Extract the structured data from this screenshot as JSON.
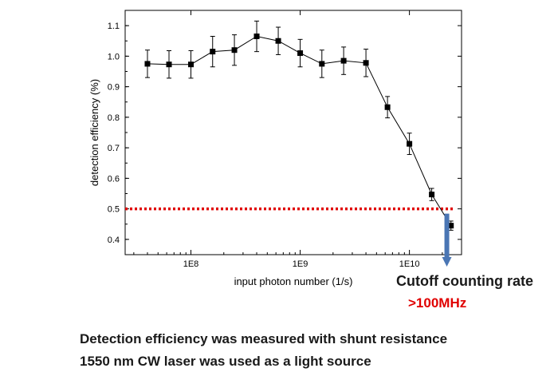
{
  "chart_data": {
    "type": "line",
    "title": "",
    "xlabel": "input photon number (1/s)",
    "ylabel": "detection efficiency (%)",
    "x_scale": "log",
    "xlim": [
      25000000.0,
      30000000000.0
    ],
    "ylim": [
      0.35,
      1.15
    ],
    "x_ticks": [
      {
        "value": 100000000.0,
        "label": "1E8"
      },
      {
        "value": 1000000000.0,
        "label": "1E9"
      },
      {
        "value": 10000000000.0,
        "label": "1E10"
      }
    ],
    "y_ticks": [
      {
        "value": 0.4,
        "label": "0.4"
      },
      {
        "value": 0.5,
        "label": "0.5"
      },
      {
        "value": 0.6,
        "label": "0.6"
      },
      {
        "value": 0.7,
        "label": "0.7"
      },
      {
        "value": 0.8,
        "label": "0.8"
      },
      {
        "value": 0.9,
        "label": "0.9"
      },
      {
        "value": 1.0,
        "label": "1.0"
      },
      {
        "value": 1.1,
        "label": "1.1"
      }
    ],
    "series": [
      {
        "marker": "square",
        "color": "#000000",
        "x": [
          40000000.0,
          63000000.0,
          100000000.0,
          158000000.0,
          250000000.0,
          400000000.0,
          630000000.0,
          1000000000.0,
          1580000000.0,
          2500000000.0,
          4000000000.0,
          6300000000.0,
          10000000000.0,
          16000000000.0,
          24000000000.0
        ],
        "y": [
          0.975,
          0.973,
          0.973,
          1.015,
          1.02,
          1.065,
          1.05,
          1.01,
          0.975,
          0.985,
          0.978,
          0.833,
          0.713,
          0.547,
          0.445
        ],
        "error": [
          0.045,
          0.045,
          0.045,
          0.05,
          0.05,
          0.05,
          0.045,
          0.045,
          0.045,
          0.045,
          0.045,
          0.035,
          0.035,
          0.02,
          0.015
        ]
      }
    ],
    "reference_line": {
      "y": 0.5,
      "style": "dotted",
      "color": "#e00000"
    },
    "cutoff_arrow": {
      "x": 22000000000.0,
      "color": "#4a76b4"
    },
    "grid": false
  },
  "annotations": {
    "cutoff_label": "Cutoff counting rate",
    "cutoff_value": ">100MHz"
  },
  "notes": [
    "Detection efficiency was measured with shunt resistance",
    "1550 nm CW laser was used as a light source"
  ]
}
